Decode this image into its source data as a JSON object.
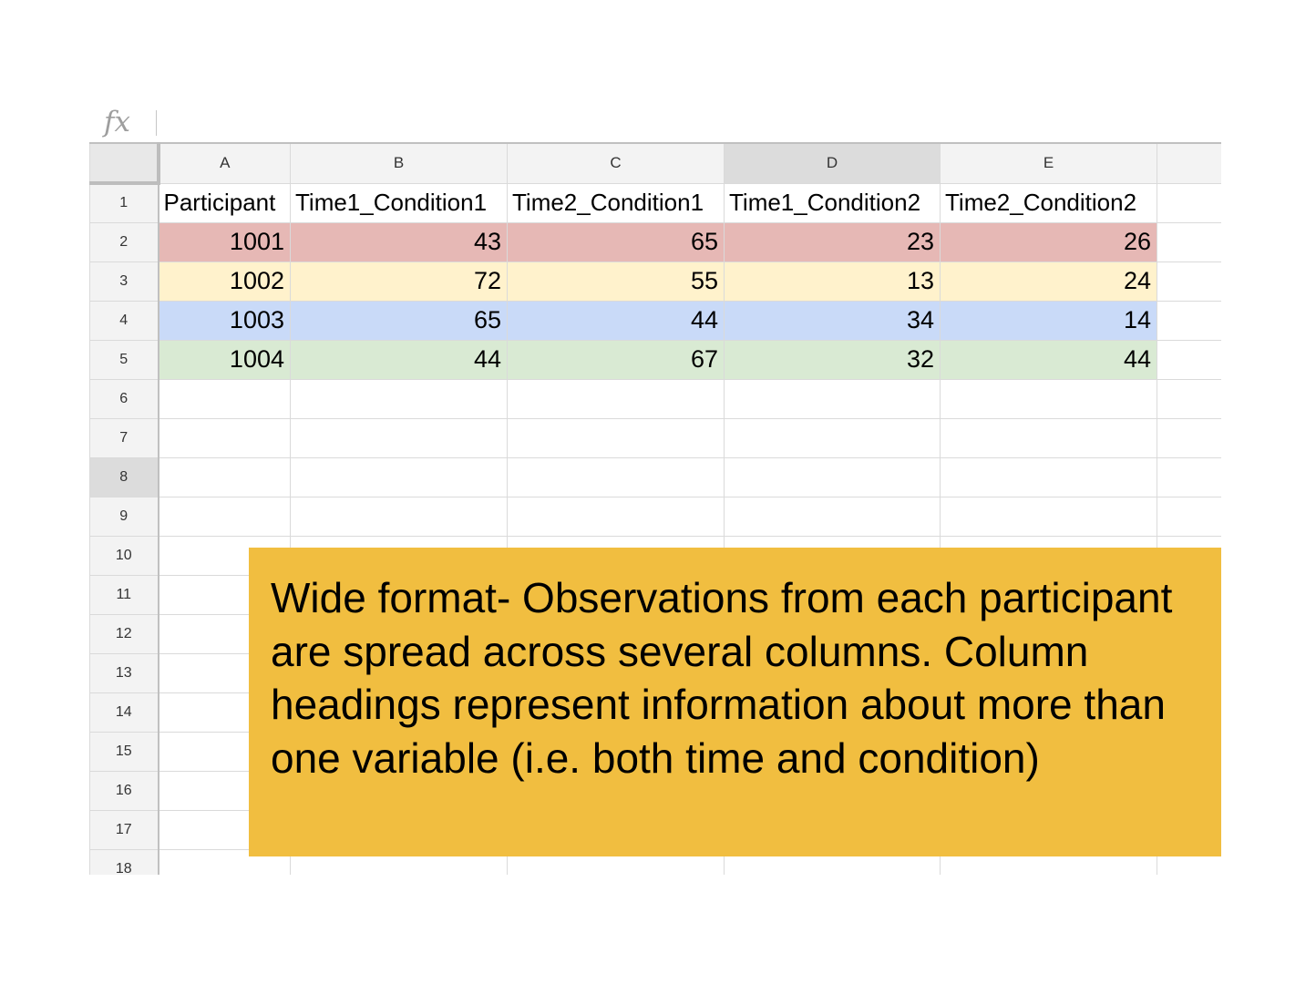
{
  "formula_bar": {
    "icon": "fx",
    "value": ""
  },
  "columns": [
    "A",
    "B",
    "C",
    "D",
    "E",
    ""
  ],
  "selected_column": "D",
  "selected_row": "8",
  "rows": [
    {
      "num": "1",
      "cells": [
        "Participant",
        "Time1_Condition1",
        "Time2_Condition1",
        "Time1_Condition2",
        "Time2_Condition2",
        ""
      ]
    },
    {
      "num": "2",
      "cells": [
        "1001",
        "43",
        "65",
        "23",
        "26",
        ""
      ]
    },
    {
      "num": "3",
      "cells": [
        "1002",
        "72",
        "55",
        "13",
        "24",
        ""
      ]
    },
    {
      "num": "4",
      "cells": [
        "1003",
        "65",
        "44",
        "34",
        "14",
        ""
      ]
    },
    {
      "num": "5",
      "cells": [
        "1004",
        "44",
        "67",
        "32",
        "44",
        ""
      ]
    },
    {
      "num": "6",
      "cells": [
        "",
        "",
        "",
        "",
        "",
        ""
      ]
    },
    {
      "num": "7",
      "cells": [
        "",
        "",
        "",
        "",
        "",
        ""
      ]
    },
    {
      "num": "8",
      "cells": [
        "",
        "",
        "",
        "",
        "",
        ""
      ]
    },
    {
      "num": "9",
      "cells": [
        "",
        "",
        "",
        "",
        "",
        ""
      ]
    },
    {
      "num": "10",
      "cells": [
        "",
        "",
        "",
        "",
        "",
        ""
      ]
    },
    {
      "num": "11",
      "cells": [
        "",
        "",
        "",
        "",
        "",
        ""
      ]
    },
    {
      "num": "12",
      "cells": [
        "",
        "",
        "",
        "",
        "",
        ""
      ]
    },
    {
      "num": "13",
      "cells": [
        "",
        "",
        "",
        "",
        "",
        ""
      ]
    },
    {
      "num": "14",
      "cells": [
        "",
        "",
        "",
        "",
        "",
        ""
      ]
    },
    {
      "num": "15",
      "cells": [
        "",
        "",
        "",
        "",
        "",
        ""
      ]
    },
    {
      "num": "16",
      "cells": [
        "",
        "",
        "",
        "",
        "",
        ""
      ]
    },
    {
      "num": "17",
      "cells": [
        "",
        "",
        "",
        "",
        "",
        ""
      ]
    },
    {
      "num": "18",
      "cells": [
        "",
        "",
        "",
        "",
        "",
        ""
      ]
    }
  ],
  "row_colors": {
    "2": "#e6b8b5",
    "3": "#fff2cc",
    "4": "#c9daf8",
    "5": "#d9ead3"
  },
  "annotation": {
    "text": "Wide format- Observations from each participant are spread across several columns. Column headings represent information about more than one variable (i.e. both time and condition)",
    "background": "#f1be40"
  }
}
